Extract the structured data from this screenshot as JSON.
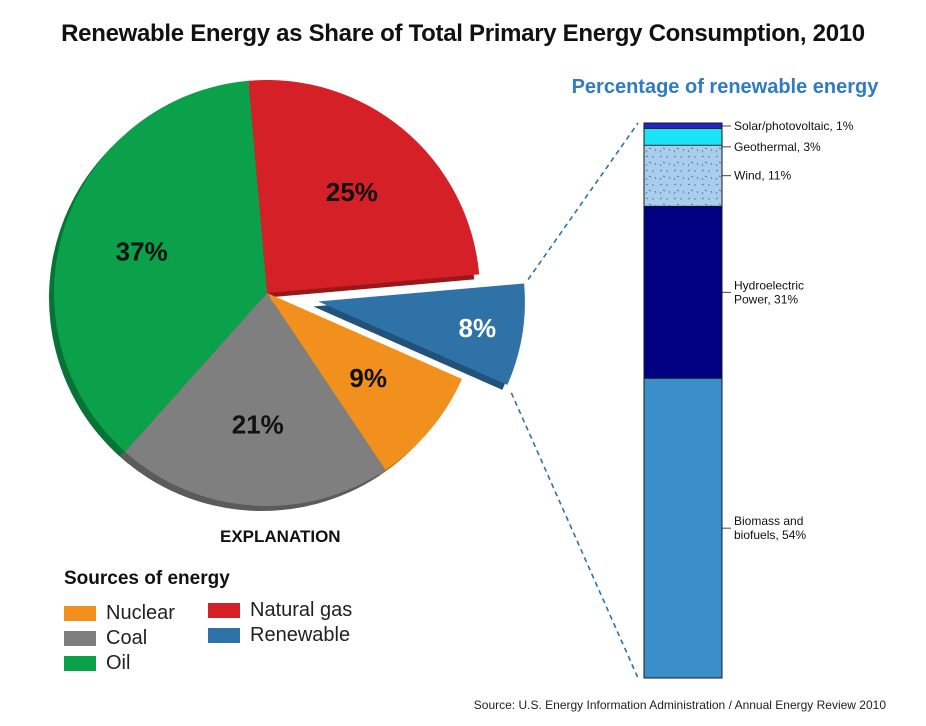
{
  "title": "Renewable Energy as Share of Total Primary Energy Consumption, 2010",
  "explanation_label": "EXPLANATION",
  "source": "Source: U.S. Energy Information Administration / Annual Energy Review 2010",
  "chart_data": [
    {
      "type": "pie",
      "title": "Renewable Energy as Share of Total Primary Energy Consumption, 2010",
      "legend_title": "Sources of energy",
      "legend_placement": "bottom-left",
      "slices": [
        {
          "label": "Natural gas",
          "value": 25,
          "display": "25%",
          "color": "#d42026"
        },
        {
          "label": "Renewable",
          "value": 8,
          "display": "8%",
          "color": "#2e72a8",
          "exploded": true
        },
        {
          "label": "Nuclear",
          "value": 9,
          "display": "9%",
          "color": "#f2901e"
        },
        {
          "label": "Coal",
          "value": 21,
          "display": "21%",
          "color": "#7f7f7f"
        },
        {
          "label": "Oil",
          "value": 37,
          "display": "37%",
          "color": "#0aa14a"
        }
      ],
      "legend": [
        {
          "label": "Nuclear",
          "color": "#f2901e"
        },
        {
          "label": "Coal",
          "color": "#7f7f7f"
        },
        {
          "label": "Oil",
          "color": "#0aa14a"
        },
        {
          "label": "Natural gas",
          "color": "#d42026"
        },
        {
          "label": "Renewable",
          "color": "#2e72a8"
        }
      ]
    },
    {
      "type": "bar",
      "stacked": true,
      "title": "Percentage of renewable energy",
      "series": [
        {
          "name": "Biomass and biofuels",
          "label": "Biomass and\nbiofuels, 54%",
          "value": 54,
          "color": "#3a8ec9"
        },
        {
          "name": "Hydroelectric Power",
          "label": "Hydroelectric\nPower, 31%",
          "value": 31,
          "color": "#000080"
        },
        {
          "name": "Wind",
          "label": "Wind, 11%",
          "value": 11,
          "color": "#a9cdec",
          "pattern": "speckle"
        },
        {
          "name": "Geothermal",
          "label": "Geothermal, 3%",
          "value": 3,
          "color": "#19e4f5"
        },
        {
          "name": "Solar/photovoltaic",
          "label": "Solar/photovoltaic, 1%",
          "value": 1,
          "color": "#2424c6"
        }
      ]
    }
  ]
}
